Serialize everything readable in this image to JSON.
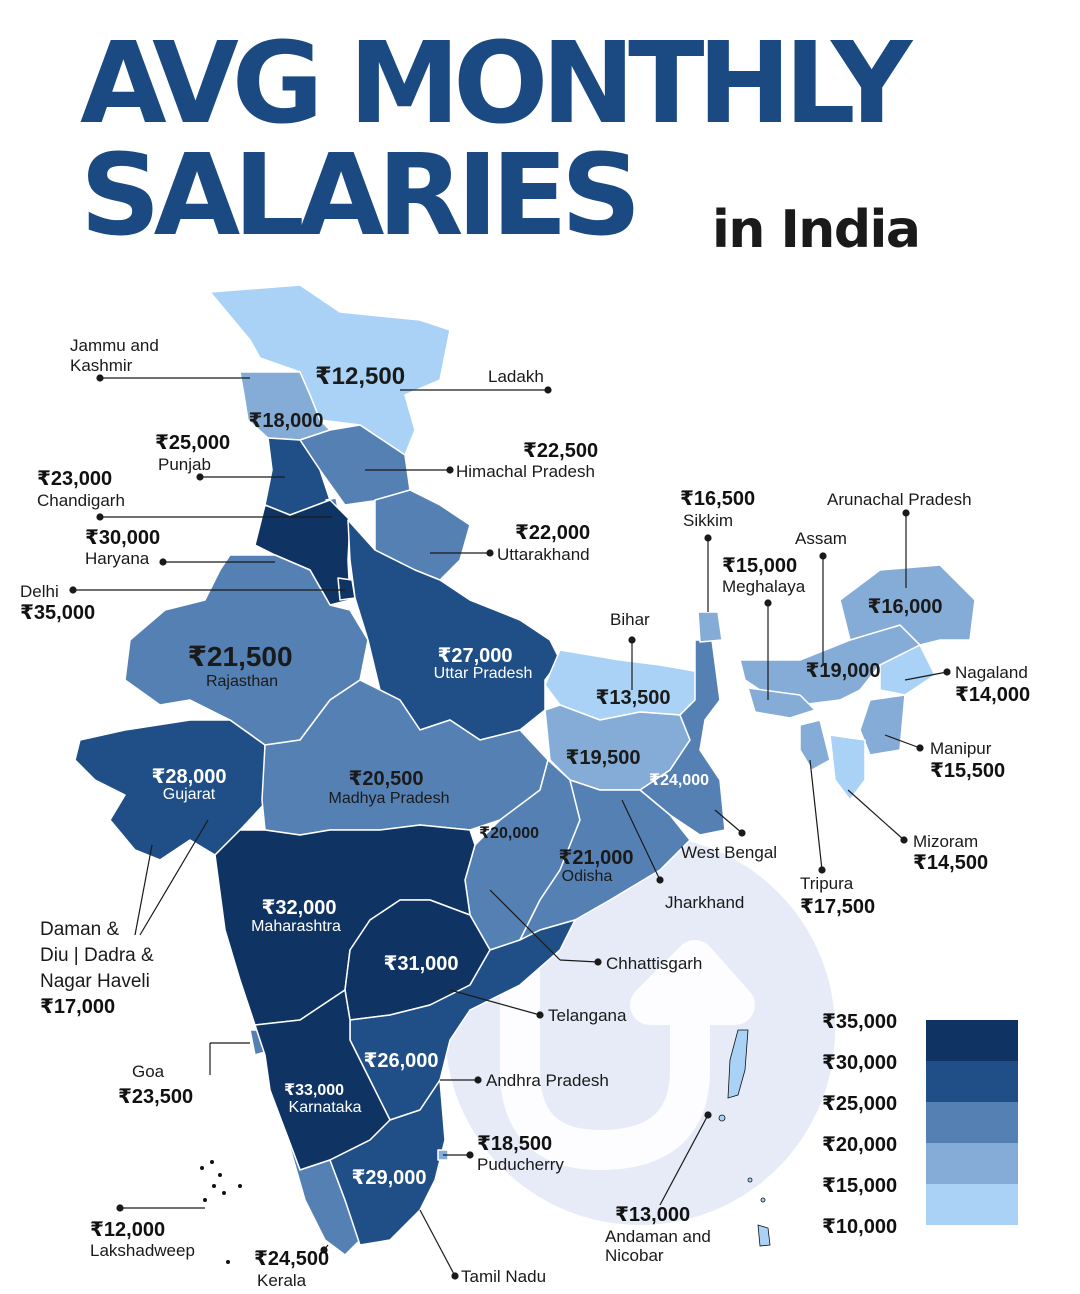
{
  "title": {
    "line1": "AVG MONTHLY",
    "line2": "SALARIES",
    "sub": "in India"
  },
  "colors": {
    "title": "#1b4a82",
    "bin_10k": "#a9d2f6",
    "bin_15k": "#84acd7",
    "bin_20k": "#5580b3",
    "bin_25k": "#1f4f86",
    "bin_30k": "#0f3464",
    "watermark": "#e6ebf7"
  },
  "watermark_icon": "up-arrow-logo-icon",
  "legend": {
    "labels": [
      "₹35,000",
      "₹30,000",
      "₹25,000",
      "₹20,000",
      "₹15,000",
      "₹10,000"
    ]
  },
  "regions": [
    {
      "name": "Jammu and Kashmir",
      "salary": "₹18,000",
      "value": 18000
    },
    {
      "name": "Ladakh",
      "salary": "₹12,500",
      "value": 12500
    },
    {
      "name": "Punjab",
      "salary": "₹25,000",
      "value": 25000
    },
    {
      "name": "Himachal Pradesh",
      "salary": "₹22,500",
      "value": 22500
    },
    {
      "name": "Chandigarh",
      "salary": "₹23,000",
      "value": 23000
    },
    {
      "name": "Haryana",
      "salary": "₹30,000",
      "value": 30000
    },
    {
      "name": "Uttarakhand",
      "salary": "₹22,000",
      "value": 22000
    },
    {
      "name": "Delhi",
      "salary": "₹35,000",
      "value": 35000
    },
    {
      "name": "Rajasthan",
      "salary": "₹21,500",
      "value": 21500
    },
    {
      "name": "Uttar Pradesh",
      "salary": "₹27,000",
      "value": 27000
    },
    {
      "name": "Bihar",
      "salary": "₹13,500",
      "value": 13500
    },
    {
      "name": "Sikkim",
      "salary": "₹16,500",
      "value": 16500
    },
    {
      "name": "Arunachal Pradesh",
      "salary": "₹16,000",
      "value": 16000
    },
    {
      "name": "Assam",
      "salary": "₹19,000",
      "value": 19000
    },
    {
      "name": "Meghalaya",
      "salary": "₹15,000",
      "value": 15000
    },
    {
      "name": "Nagaland",
      "salary": "₹14,000",
      "value": 14000
    },
    {
      "name": "Manipur",
      "salary": "₹15,500",
      "value": 15500
    },
    {
      "name": "Mizoram",
      "salary": "₹14,500",
      "value": 14500
    },
    {
      "name": "Tripura",
      "salary": "₹17,500",
      "value": 17500
    },
    {
      "name": "West Bengal",
      "salary": "₹24,000",
      "value": 24000
    },
    {
      "name": "Jharkhand",
      "salary": "₹19,500",
      "value": 19500
    },
    {
      "name": "Odisha",
      "salary": "₹21,000",
      "value": 21000
    },
    {
      "name": "Chhattisgarh",
      "salary": "₹20,000",
      "value": 20000
    },
    {
      "name": "Madhya Pradesh",
      "salary": "₹20,500",
      "value": 20500
    },
    {
      "name": "Gujarat",
      "salary": "₹28,000",
      "value": 28000
    },
    {
      "name": "Daman & Diu | Dadra & Nagar Haveli",
      "name_lines": [
        "Daman &",
        "Diu | Dadra &",
        "Nagar Haveli"
      ],
      "salary": "₹17,000",
      "value": 17000
    },
    {
      "name": "Maharashtra",
      "salary": "₹32,000",
      "value": 32000
    },
    {
      "name": "Telangana",
      "salary": "₹31,000",
      "value": 31000
    },
    {
      "name": "Goa",
      "salary": "₹23,500",
      "value": 23500
    },
    {
      "name": "Andhra Pradesh",
      "salary": "₹26,000",
      "value": 26000
    },
    {
      "name": "Karnataka",
      "salary": "₹33,000",
      "value": 33000
    },
    {
      "name": "Puducherry",
      "salary": "₹18,500",
      "value": 18500
    },
    {
      "name": "Tamil Nadu",
      "salary": "₹29,000",
      "value": 29000
    },
    {
      "name": "Kerala",
      "salary": "₹24,500",
      "value": 24500
    },
    {
      "name": "Lakshadweep",
      "salary": "₹12,000",
      "value": 12000
    },
    {
      "name": "Andaman and Nicobar",
      "name_lines": [
        "Andaman and",
        "Nicobar"
      ],
      "salary": "₹13,000",
      "value": 13000
    }
  ]
}
